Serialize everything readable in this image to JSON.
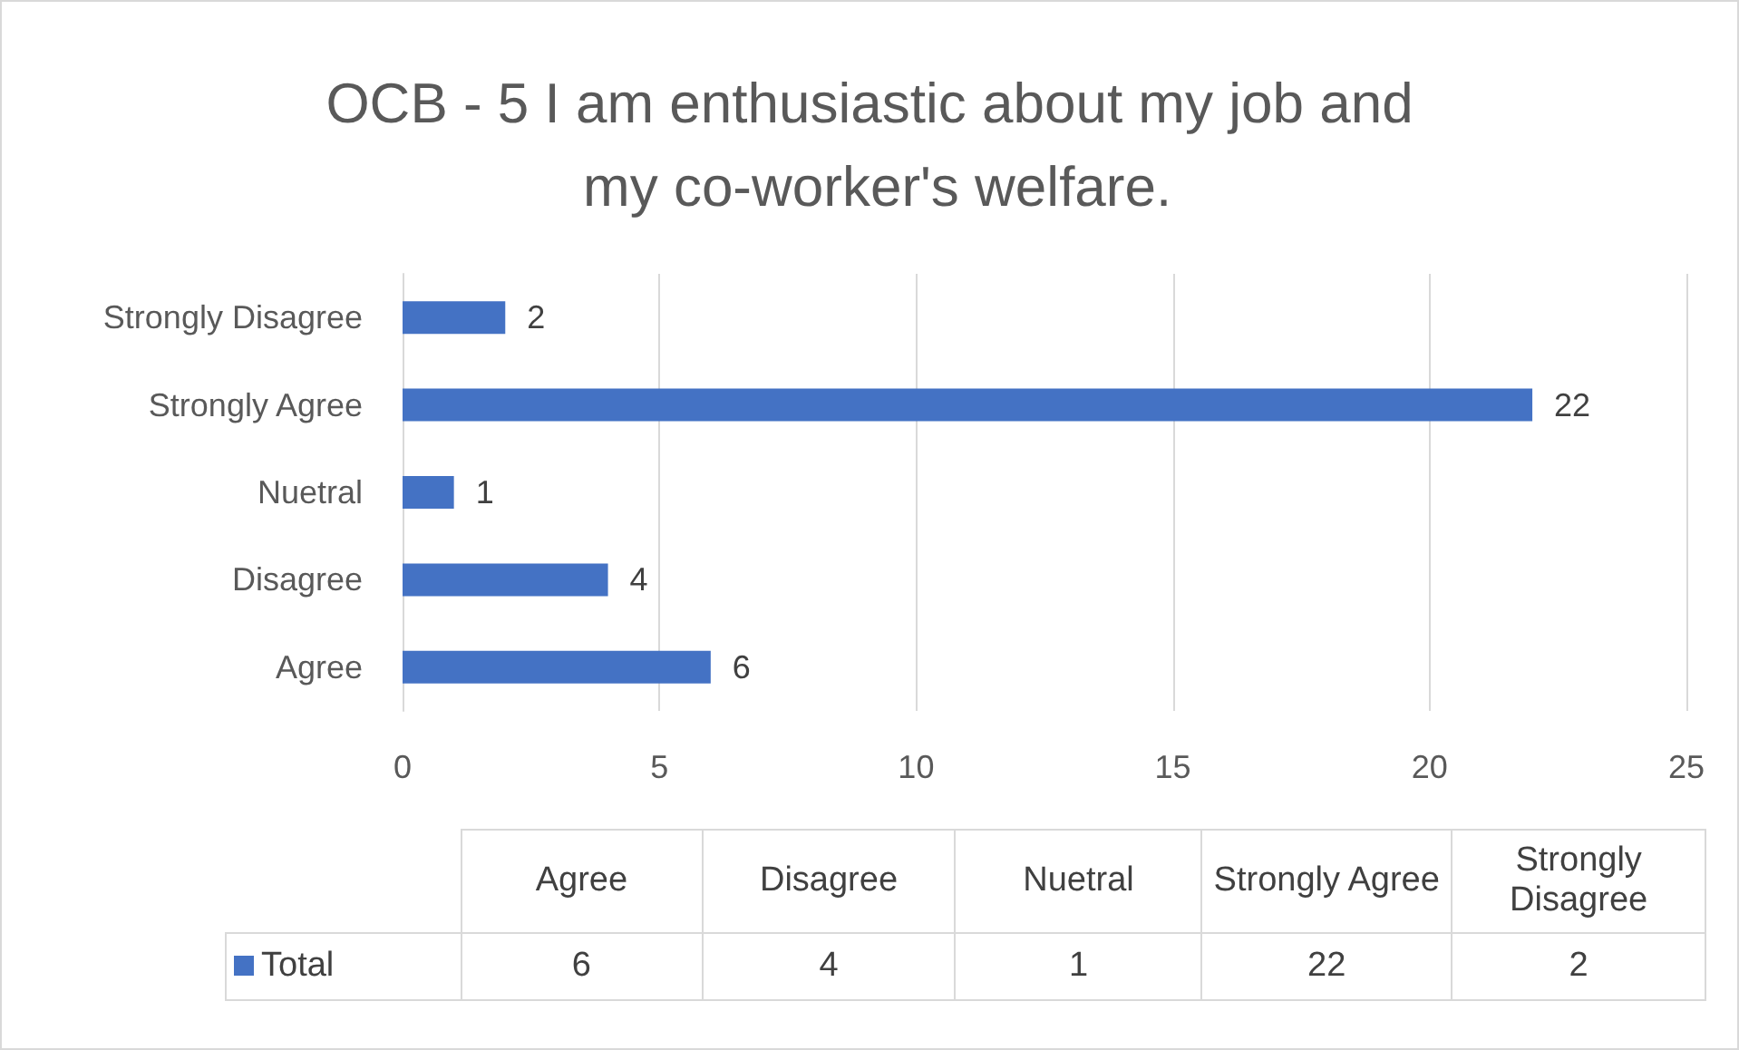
{
  "chart_data": {
    "type": "bar",
    "orientation": "horizontal",
    "title": "OCB - 5 I am enthusiastic about my job and my co-worker's welfare.",
    "categories": [
      "Strongly Disagree",
      "Strongly Agree",
      "Nuetral",
      "Disagree",
      "Agree"
    ],
    "series": [
      {
        "name": "Total",
        "color": "#4472c4",
        "values": [
          2,
          22,
          1,
          4,
          6
        ],
        "value_labels": [
          "2",
          "22",
          "1",
          "4",
          "6"
        ]
      }
    ],
    "xlim": [
      0,
      25
    ],
    "xticks": [
      0,
      5,
      10,
      15,
      20,
      25
    ],
    "grid": "x",
    "legend": "bottom"
  }
}
